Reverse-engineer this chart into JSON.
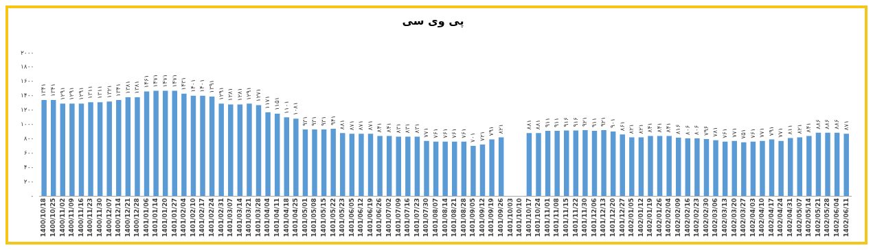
{
  "chart_data": {
    "type": "bar",
    "title": "پی وی سی",
    "categories": [
      "1400/10/18",
      "1400/10/25",
      "1400/11/02",
      "1400/11/09",
      "1400/11/16",
      "1400/11/23",
      "1400/11/30",
      "1400/12/07",
      "1400/12/14",
      "1400/12/21",
      "1400/12/28",
      "1401/01/06",
      "1401/01/14",
      "1401/01/20",
      "1401/01/27",
      "1401/02/04",
      "1401/02/10",
      "1401/02/17",
      "1401/02/24",
      "1401/02/31",
      "1401/03/07",
      "1401/03/14",
      "1401/03/21",
      "1401/03/28",
      "1401/04/04",
      "1401/04/11",
      "1401/04/18",
      "1401/04/25",
      "1401/05/01",
      "1401/05/08",
      "1401/05/15",
      "1401/05/22",
      "1401/05/23",
      "1401/06/05",
      "1401/06/12",
      "1401/06/19",
      "1401/06/26",
      "1401/07/02",
      "1401/07/09",
      "1401/07/16",
      "1401/07/23",
      "1401/07/30",
      "1401/08/07",
      "1401/08/14",
      "1401/08/21",
      "1401/08/28",
      "1401/09/05",
      "1401/09/12",
      "1401/09/19",
      "1401/09/26",
      "1401/10/03",
      "1401/10/10",
      "1401/10/17",
      "1401/10/24",
      "1401/11/01",
      "1401/11/08",
      "1401/11/15",
      "1401/11/22",
      "1401/11/30",
      "1401/12/06",
      "1401/12/13",
      "1401/12/20",
      "1401/12/27",
      "1402/01/05",
      "1402/01/12",
      "1402/01/19",
      "1402/01/26",
      "1402/02/04",
      "1402/02/09",
      "1402/02/16",
      "1402/02/23",
      "1402/02/30",
      "1402/03/06",
      "1402/03/13",
      "1402/03/20",
      "1402/03/27",
      "1402/04/03",
      "1402/04/10",
      "1402/04/17",
      "1402/04/24",
      "1402/04/31",
      "1402/05/07",
      "1402/05/14",
      "1402/05/21",
      "1402/05/28",
      "1402/06/04",
      "1402/06/11"
    ],
    "values": [
      1341,
      1341,
      1291,
      1291,
      1291,
      1311,
      1311,
      1321,
      1341,
      1381,
      1381,
      1461,
      1471,
      1471,
      1471,
      1431,
      1401,
      1401,
      1391,
      1291,
      1281,
      1281,
      1291,
      1271,
      1171,
      1151,
      1101,
      1081,
      931,
      931,
      931,
      941,
      881,
      871,
      871,
      871,
      841,
      841,
      831,
      831,
      831,
      771,
      761,
      761,
      761,
      761,
      701,
      721,
      791,
      821,
      null,
      null,
      881,
      881,
      911,
      911,
      916,
      916,
      921,
      911,
      921,
      901,
      861,
      821,
      821,
      841,
      841,
      841,
      816,
      806,
      806,
      796,
      781,
      761,
      771,
      751,
      761,
      771,
      791,
      771,
      811,
      821,
      841,
      886,
      886,
      886,
      871
    ],
    "value_labels": [
      "۱۳۴۱",
      "۱۳۴۱",
      "۱۲۹۱",
      "۱۲۹۱",
      "۱۲۹۱",
      "۱۳۱۱",
      "۱۳۱۱",
      "۱۳۲۱",
      "۱۳۴۱",
      "۱۳۸۱",
      "۱۳۸۱",
      "۱۴۶۱",
      "۱۴۷۱",
      "۱۴۷۱",
      "۱۴۷۱",
      "۱۴۳۱",
      "۱۴۰۱",
      "۱۴۰۱",
      "۱۳۹۱",
      "۱۲۹۱",
      "۱۲۸۱",
      "۱۲۸۱",
      "۱۲۹۱",
      "۱۲۷۱",
      "۱۱۷۱",
      "۱۱۵۱",
      "۱۱۰۱",
      "۱۰۸۱",
      "۹۳۱",
      "۹۳۱",
      "۹۳۱",
      "۹۴۱",
      "۸۸۱",
      "۸۷۱",
      "۸۷۱",
      "۸۷۱",
      "۸۴۱",
      "۸۴۱",
      "۸۳۱",
      "۸۳۱",
      "۸۳۱",
      "۷۷۱",
      "۷۶۱",
      "۷۶۱",
      "۷۶۱",
      "۷۶۱",
      "۷۰۱",
      "۷۲۱",
      "۷۹۱",
      "۸۲۱",
      null,
      null,
      "۸۸۱",
      "۸۸۱",
      "۹۱۱",
      "۹۱۱",
      "۹۱۶",
      "۹۱۶",
      "۹۲۱",
      "۹۱۱",
      "۹۲۱",
      "۹۰۱",
      "۸۶۱",
      "۸۲۱",
      "۸۲۱",
      "۸۴۱",
      "۸۴۱",
      "۸۴۱",
      "۸۱۶",
      "۸۰۶",
      "۸۰۶",
      "۷۹۶",
      "۷۸۱",
      "۷۶۱",
      "۷۷۱",
      "۷۵۱",
      "۷۶۱",
      "۷۷۱",
      "۷۹۱",
      "۷۷۱",
      "۸۱۱",
      "۸۲۱",
      "۸۴۱",
      "۸۸۶",
      "۸۸۶",
      "۸۸۶",
      "۸۷۱"
    ],
    "color": "#5b9bd5",
    "ylim": [
      0,
      2000
    ],
    "yticks": [
      {
        "value": 0,
        "label": "۰"
      },
      {
        "value": 200,
        "label": "۲۰۰"
      },
      {
        "value": 400,
        "label": "۴۰۰"
      },
      {
        "value": 600,
        "label": "۶۰۰"
      },
      {
        "value": 800,
        "label": "۸۰۰"
      },
      {
        "value": 1000,
        "label": "۱۰۰۰"
      },
      {
        "value": 1200,
        "label": "۱۲۰۰"
      },
      {
        "value": 1400,
        "label": "۱۴۰۰"
      },
      {
        "value": 1600,
        "label": "۱۶۰۰"
      },
      {
        "value": 1800,
        "label": "۱۸۰۰"
      },
      {
        "value": 2000,
        "label": "۲۰۰۰"
      }
    ],
    "grid": false,
    "legend": false
  }
}
